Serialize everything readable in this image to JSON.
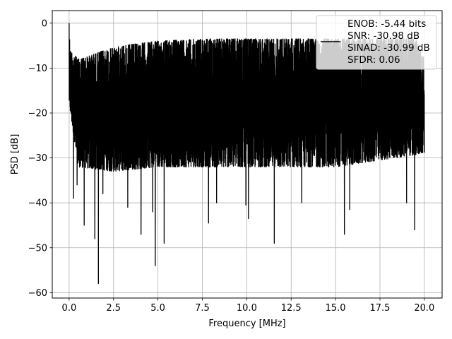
{
  "chart_data": {
    "type": "line",
    "title": "",
    "xlabel": "Frequency [MHz]",
    "ylabel": "PSD [dB]",
    "xlim": [
      -0.95,
      21.0
    ],
    "ylim": [
      -61.2,
      2.8
    ],
    "xticks": [
      0.0,
      2.5,
      5.0,
      7.5,
      10.0,
      12.5,
      15.0,
      17.5,
      20.0
    ],
    "xtick_labels": [
      "0.0",
      "2.5",
      "5.0",
      "7.5",
      "10.0",
      "12.5",
      "15.0",
      "17.5",
      "20.0"
    ],
    "yticks": [
      0,
      -10,
      -20,
      -30,
      -40,
      -50,
      -60
    ],
    "ytick_labels": [
      "0",
      "−10",
      "−20",
      "−30",
      "−40",
      "−50",
      "−60"
    ],
    "grid": true,
    "legend_position": "top-right",
    "legend_entries": [
      "ENOB: -5.44 bits",
      "SNR: -30.98 dB",
      "SINAD: -30.99 dB",
      "SFDR: 0.06"
    ],
    "series": [
      {
        "color": "#000000",
        "description": "Dense noise-like PSD spanning 0 to 20 MHz, upper envelope about -8 dB near 0.5 MHz rising to about -3 dB across the band, lower values mostly between -30 and -35 dB with deep dips",
        "x_range": [
          0.0,
          20.0
        ],
        "peak": {
          "x": 0.0,
          "y": 0.0
        },
        "upper_envelope": [
          [
            0.0,
            0.0
          ],
          [
            0.05,
            -6
          ],
          [
            0.5,
            -8
          ],
          [
            1.0,
            -7.5
          ],
          [
            2.0,
            -6
          ],
          [
            3.0,
            -5
          ],
          [
            5.0,
            -4
          ],
          [
            7.5,
            -3.5
          ],
          [
            10.0,
            -3.5
          ],
          [
            12.5,
            -3.5
          ],
          [
            15.0,
            -3.5
          ],
          [
            17.5,
            -3.5
          ],
          [
            19.5,
            -3.5
          ],
          [
            20.0,
            -8
          ]
        ],
        "lower_envelope": [
          [
            0.0,
            -18
          ],
          [
            0.5,
            -32
          ],
          [
            2.5,
            -33
          ],
          [
            5.0,
            -32
          ],
          [
            10.0,
            -32
          ],
          [
            15.0,
            -32
          ],
          [
            20.0,
            -29
          ]
        ],
        "notable_dips": [
          [
            0.25,
            -39
          ],
          [
            0.45,
            -36
          ],
          [
            0.85,
            -45
          ],
          [
            1.45,
            -48
          ],
          [
            1.65,
            -58
          ],
          [
            1.9,
            -38
          ],
          [
            3.3,
            -41
          ],
          [
            4.05,
            -47
          ],
          [
            4.7,
            -42
          ],
          [
            4.85,
            -54
          ],
          [
            5.35,
            -49
          ],
          [
            7.85,
            -44.5
          ],
          [
            8.3,
            -40
          ],
          [
            9.95,
            -40.5
          ],
          [
            10.1,
            -43.5
          ],
          [
            11.55,
            -49
          ],
          [
            13.1,
            -40
          ],
          [
            15.5,
            -47
          ],
          [
            15.8,
            -41.5
          ],
          [
            19.0,
            -40
          ],
          [
            19.45,
            -46
          ]
        ]
      }
    ]
  }
}
